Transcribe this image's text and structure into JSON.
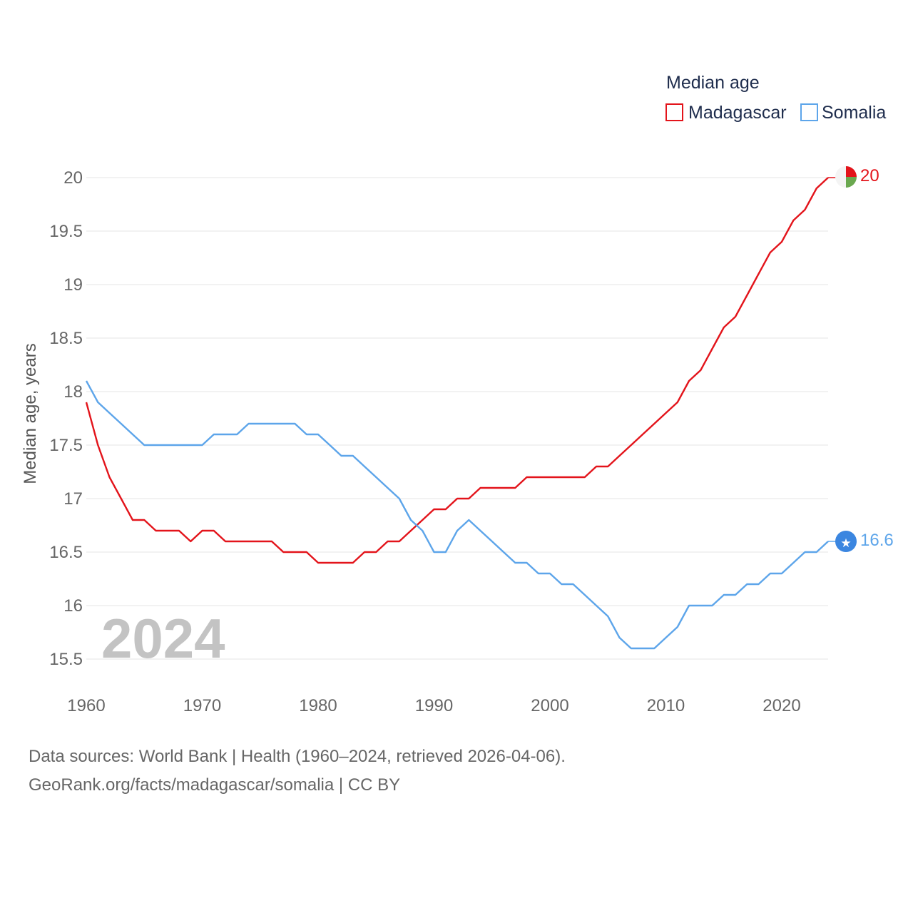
{
  "chart_data": {
    "type": "line",
    "title": "Median age",
    "ylabel": "Median age, years",
    "xlabel": "",
    "ylim": [
      15.5,
      20
    ],
    "xlim": [
      1960,
      2024
    ],
    "yticks": [
      "15.5",
      "16",
      "16.5",
      "17",
      "17.5",
      "18",
      "18.5",
      "19",
      "19.5",
      "20"
    ],
    "xticks": [
      "1960",
      "1970",
      "1980",
      "1990",
      "2000",
      "2010",
      "2020"
    ],
    "grid": true,
    "legend_position": "top-right",
    "year_label": "2024",
    "x": [
      1960,
      1961,
      1962,
      1963,
      1964,
      1965,
      1966,
      1967,
      1968,
      1969,
      1970,
      1971,
      1972,
      1973,
      1974,
      1975,
      1976,
      1977,
      1978,
      1979,
      1980,
      1981,
      1982,
      1983,
      1984,
      1985,
      1986,
      1987,
      1988,
      1989,
      1990,
      1991,
      1992,
      1993,
      1994,
      1995,
      1996,
      1997,
      1998,
      1999,
      2000,
      2001,
      2002,
      2003,
      2004,
      2005,
      2006,
      2007,
      2008,
      2009,
      2010,
      2011,
      2012,
      2013,
      2014,
      2015,
      2016,
      2017,
      2018,
      2019,
      2020,
      2021,
      2022,
      2023,
      2024
    ],
    "series": [
      {
        "name": "Madagascar",
        "color": "#e3141b",
        "end_label": "20",
        "end_marker": "flag-madagascar-icon",
        "values": [
          17.9,
          17.5,
          17.2,
          17.0,
          16.8,
          16.8,
          16.7,
          16.7,
          16.7,
          16.6,
          16.7,
          16.7,
          16.6,
          16.6,
          16.6,
          16.6,
          16.6,
          16.5,
          16.5,
          16.5,
          16.4,
          16.4,
          16.4,
          16.4,
          16.5,
          16.5,
          16.6,
          16.6,
          16.7,
          16.8,
          16.9,
          16.9,
          17.0,
          17.0,
          17.1,
          17.1,
          17.1,
          17.1,
          17.2,
          17.2,
          17.2,
          17.2,
          17.2,
          17.2,
          17.3,
          17.3,
          17.4,
          17.5,
          17.6,
          17.7,
          17.8,
          17.9,
          18.1,
          18.2,
          18.4,
          18.6,
          18.7,
          18.9,
          19.1,
          19.3,
          19.4,
          19.6,
          19.7,
          19.9,
          20.0
        ]
      },
      {
        "name": "Somalia",
        "color": "#5da5ea",
        "end_label": "16.6",
        "end_marker": "flag-somalia-icon",
        "values": [
          18.1,
          17.9,
          17.8,
          17.7,
          17.6,
          17.5,
          17.5,
          17.5,
          17.5,
          17.5,
          17.5,
          17.6,
          17.6,
          17.6,
          17.7,
          17.7,
          17.7,
          17.7,
          17.7,
          17.6,
          17.6,
          17.5,
          17.4,
          17.4,
          17.3,
          17.2,
          17.1,
          17.0,
          16.8,
          16.7,
          16.5,
          16.5,
          16.7,
          16.8,
          16.7,
          16.6,
          16.5,
          16.4,
          16.4,
          16.3,
          16.3,
          16.2,
          16.2,
          16.1,
          16.0,
          15.9,
          15.7,
          15.6,
          15.6,
          15.6,
          15.7,
          15.8,
          16.0,
          16.0,
          16.0,
          16.1,
          16.1,
          16.2,
          16.2,
          16.3,
          16.3,
          16.4,
          16.5,
          16.5,
          16.6
        ]
      }
    ]
  },
  "footer": {
    "sources": "Data sources: World Bank | Health (1960–2024, retrieved 2026-04-06).",
    "credit": "GeoRank.org/facts/madagascar/somalia | CC BY"
  }
}
